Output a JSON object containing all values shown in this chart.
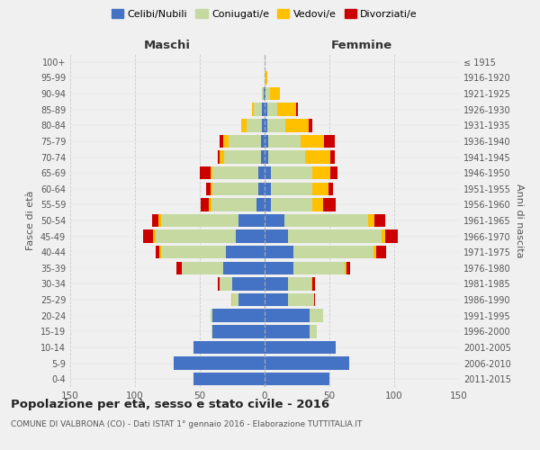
{
  "age_groups": [
    "0-4",
    "5-9",
    "10-14",
    "15-19",
    "20-24",
    "25-29",
    "30-34",
    "35-39",
    "40-44",
    "45-49",
    "50-54",
    "55-59",
    "60-64",
    "65-69",
    "70-74",
    "75-79",
    "80-84",
    "85-89",
    "90-94",
    "95-99",
    "100+"
  ],
  "birth_years": [
    "2011-2015",
    "2006-2010",
    "2001-2005",
    "1996-2000",
    "1991-1995",
    "1986-1990",
    "1981-1985",
    "1976-1980",
    "1971-1975",
    "1966-1970",
    "1961-1965",
    "1956-1960",
    "1951-1955",
    "1946-1950",
    "1941-1945",
    "1936-1940",
    "1931-1935",
    "1926-1930",
    "1921-1925",
    "1916-1920",
    "≤ 1915"
  ],
  "males": {
    "celibi": [
      55,
      70,
      55,
      40,
      40,
      20,
      25,
      32,
      30,
      22,
      20,
      6,
      5,
      5,
      3,
      3,
      2,
      2,
      1,
      0,
      0
    ],
    "coniugati": [
      0,
      0,
      0,
      1,
      2,
      5,
      10,
      32,
      50,
      62,
      60,
      35,
      35,
      35,
      28,
      25,
      12,
      6,
      1,
      0,
      0
    ],
    "vedovi": [
      0,
      0,
      0,
      0,
      0,
      1,
      0,
      0,
      1,
      2,
      2,
      2,
      2,
      2,
      4,
      4,
      4,
      2,
      0,
      0,
      0
    ],
    "divorziati": [
      0,
      0,
      0,
      0,
      0,
      0,
      1,
      4,
      3,
      8,
      5,
      6,
      3,
      8,
      1,
      3,
      0,
      0,
      0,
      0,
      0
    ]
  },
  "females": {
    "nubili": [
      50,
      65,
      55,
      35,
      35,
      18,
      18,
      22,
      22,
      18,
      15,
      5,
      5,
      5,
      3,
      3,
      2,
      2,
      1,
      0,
      0
    ],
    "coniugate": [
      0,
      0,
      0,
      5,
      10,
      20,
      18,
      40,
      62,
      72,
      65,
      32,
      32,
      32,
      28,
      25,
      14,
      8,
      3,
      1,
      0
    ],
    "vedove": [
      0,
      0,
      0,
      0,
      0,
      0,
      1,
      1,
      2,
      3,
      5,
      8,
      12,
      14,
      20,
      18,
      18,
      14,
      8,
      1,
      0
    ],
    "divorziate": [
      0,
      0,
      0,
      0,
      0,
      1,
      2,
      3,
      8,
      10,
      8,
      10,
      4,
      5,
      3,
      8,
      3,
      2,
      0,
      0,
      0
    ]
  },
  "colors": {
    "celibi": "#4472c4",
    "coniugati": "#c5d9a0",
    "vedovi": "#ffc000",
    "divorziati": "#cc0000"
  },
  "xlim": 150,
  "title": "Popolazione per età, sesso e stato civile - 2016",
  "subtitle": "COMUNE DI VALBRONA (CO) - Dati ISTAT 1° gennaio 2016 - Elaborazione TUTTITALIA.IT",
  "ylabel_left": "Fasce di età",
  "ylabel_right": "Anni di nascita",
  "xlabel_left": "Maschi",
  "xlabel_right": "Femmine",
  "legend_labels": [
    "Celibi/Nubili",
    "Coniugati/e",
    "Vedovi/e",
    "Divorziati/e"
  ],
  "bg_color": "#f0f0f0"
}
